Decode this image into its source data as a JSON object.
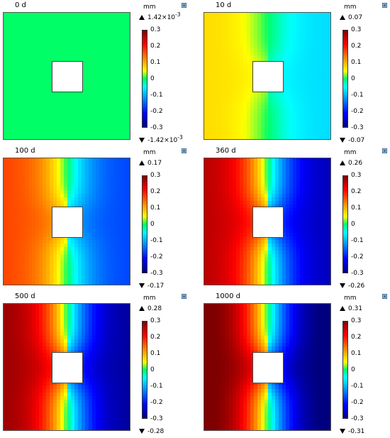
{
  "unit": "mm",
  "colorbar_ticks": [
    "0.3",
    "0.2",
    "0.1",
    "0",
    "-0.1",
    "-0.2",
    "-0.3"
  ],
  "colors": {
    "max_red": "#7f0000",
    "red": "#ff0000",
    "orange": "#ff8000",
    "yellow": "#ffff00",
    "green": "#00ff66",
    "cyan": "#00ffff",
    "blue": "#0000ff",
    "dark_blue": "#00007f"
  },
  "panels": [
    {
      "title": "0 d",
      "max": "1.42×10",
      "max_exp": "-3",
      "min": "-1.42×10",
      "min_exp": "-3",
      "peak": 0.0
    },
    {
      "title": "10 d",
      "max": "0.07",
      "max_exp": "",
      "min": "-0.07",
      "min_exp": "",
      "peak": 0.07
    },
    {
      "title": "100 d",
      "max": "0.17",
      "max_exp": "",
      "min": "-0.17",
      "min_exp": "",
      "peak": 0.17
    },
    {
      "title": "360 d",
      "max": "0.26",
      "max_exp": "",
      "min": "-0.26",
      "min_exp": "",
      "peak": 0.26
    },
    {
      "title": "500 d",
      "max": "0.28",
      "max_exp": "",
      "min": "-0.28",
      "min_exp": "",
      "peak": 0.28
    },
    {
      "title": "1000 d",
      "max": "0.31",
      "max_exp": "",
      "min": "-0.31",
      "min_exp": "",
      "peak": 0.31
    }
  ]
}
